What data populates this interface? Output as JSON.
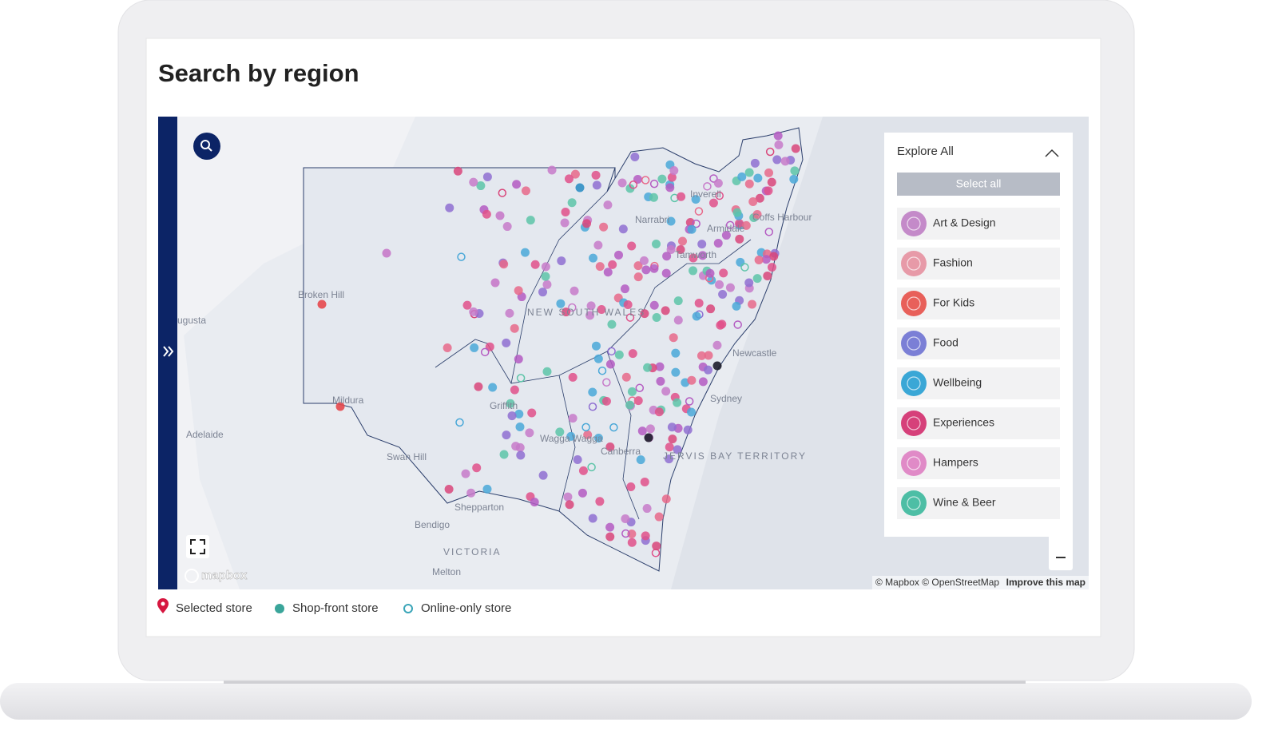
{
  "header": {
    "title": "Search by region"
  },
  "map": {
    "labels": [
      "Broken Hill",
      "ugusta",
      "Adelaide",
      "Mildura",
      "Griffith",
      "Wagga Wagga",
      "Swan Hill",
      "Shepparton",
      "Bendigo",
      "VICTORIA",
      "Melton",
      "NEW SOUTH WALES",
      "Narrabri",
      "Inverell",
      "Armidale",
      "Coffs Harbour",
      "Tamworth",
      "Newcastle",
      "Sydney",
      "Canberra",
      "JERVIS BAY TERRITORY"
    ],
    "logo": "mapbox",
    "attribution": "© Mapbox © OpenStreetMap",
    "improve": "Improve this map"
  },
  "panel": {
    "title": "Explore All",
    "select_all": "Select all",
    "categories": [
      "Art & Design",
      "Fashion",
      "For Kids",
      "Food",
      "Wellbeing",
      "Experiences",
      "Hampers",
      "Wine & Beer"
    ]
  },
  "legend": [
    "Selected store",
    "Shop-front store",
    "Online-only store"
  ]
}
